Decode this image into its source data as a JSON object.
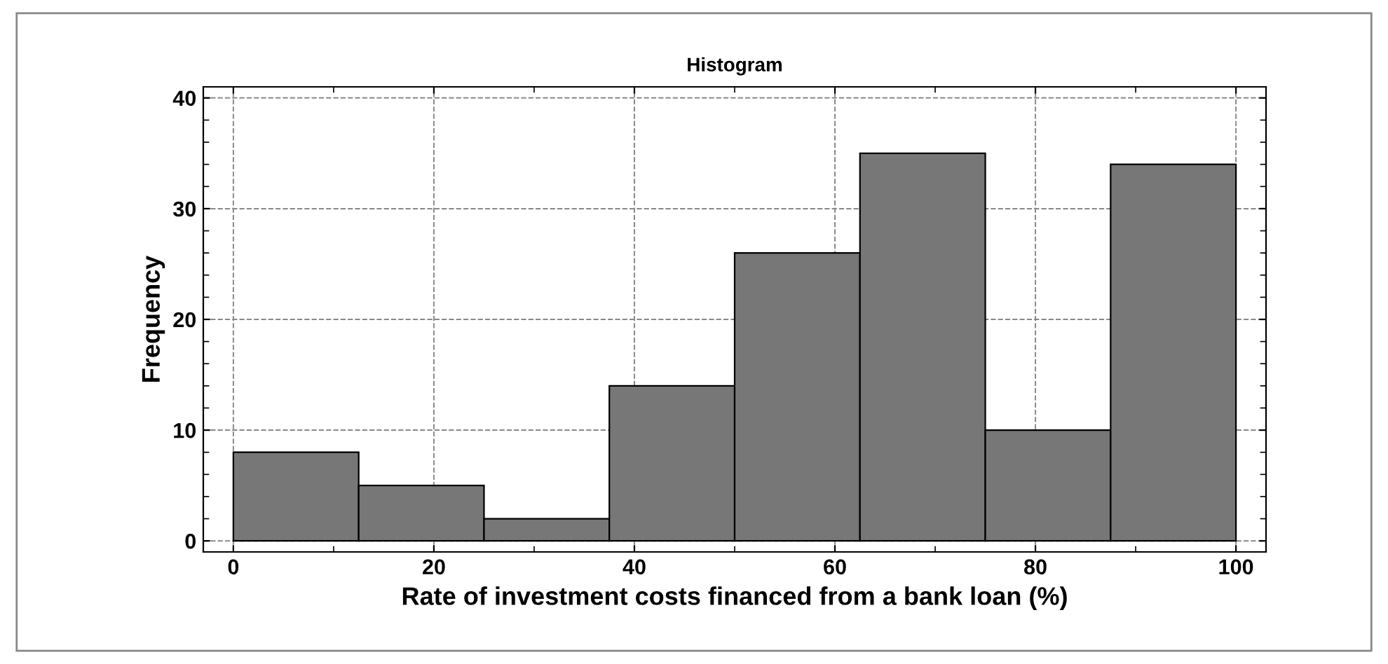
{
  "chart_data": {
    "type": "histogram",
    "title": "Histogram",
    "xlabel": "Rate of investment costs financed from a bank loan (%)",
    "ylabel": "Frequency",
    "bins": [
      0,
      12.5,
      25,
      37.5,
      50,
      62.5,
      75,
      87.5,
      100
    ],
    "values": [
      8,
      5,
      2,
      14,
      26,
      35,
      10,
      34
    ],
    "color": "#777777",
    "xlim": [
      -3,
      103
    ],
    "xticks": [
      0,
      20,
      40,
      60,
      80,
      100
    ],
    "ylim": [
      -1,
      41
    ],
    "yticks": [
      0,
      10,
      20,
      30,
      40
    ],
    "grid": true,
    "line_style": "dashed"
  }
}
